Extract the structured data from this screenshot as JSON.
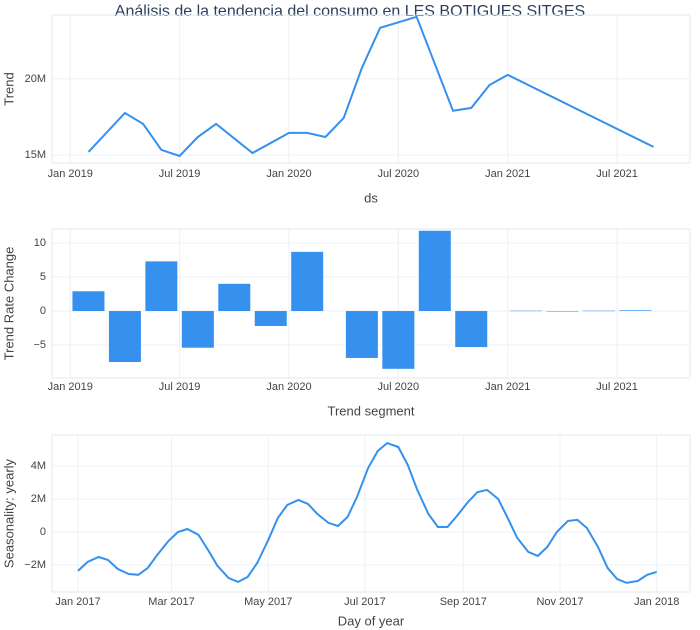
{
  "chart_data": [
    {
      "type": "line",
      "title": "Análisis de la tendencia del consumo en LES BOTIGUES SITGES",
      "x_label": "ds",
      "y_label": "Trend",
      "color": "#3590ee",
      "x": [
        "2019-02",
        "2019-04",
        "2019-05",
        "2019-06",
        "2019-07",
        "2019-08",
        "2019-09",
        "2019-11",
        "2020-01",
        "2020-02",
        "2020-03",
        "2020-04",
        "2020-05",
        "2020-06",
        "2020-08",
        "2020-10",
        "2020-11",
        "2020-12",
        "2021-01",
        "2021-09"
      ],
      "values": [
        15200000,
        17760000,
        17040000,
        15330000,
        14930000,
        16180000,
        17040000,
        15130000,
        16450000,
        16450000,
        16180000,
        17430000,
        20720000,
        23360000,
        24080000,
        17900000,
        18090000,
        19600000,
        20260000,
        15530000
      ],
      "xlim": [
        "2018-12",
        "2021-11"
      ],
      "xticks": [
        {
          "value": "2019-01",
          "label": "Jan 2019"
        },
        {
          "value": "2019-07",
          "label": "Jul 2019"
        },
        {
          "value": "2020-01",
          "label": "Jan 2020"
        },
        {
          "value": "2020-07",
          "label": "Jul 2020"
        },
        {
          "value": "2021-01",
          "label": "Jan 2021"
        },
        {
          "value": "2021-07",
          "label": "Jul 2021"
        }
      ],
      "ylim": [
        14470000,
        24200000
      ],
      "yticks": [
        {
          "value": 15000000,
          "label": "15M"
        },
        {
          "value": 20000000,
          "label": "20M"
        }
      ],
      "grid": true
    },
    {
      "type": "bar",
      "x_label": "Trend segment",
      "y_label": "Trend Rate Change",
      "color": "#3590ee",
      "x": [
        "2019-02",
        "2019-04",
        "2019-06",
        "2019-08",
        "2019-10",
        "2019-12",
        "2020-02",
        "2020-05",
        "2020-07",
        "2020-09",
        "2020-11",
        "2021-02",
        "2021-04",
        "2021-06",
        "2021-08"
      ],
      "values": [
        2.9,
        -7.5,
        7.3,
        -5.4,
        4.0,
        -2.2,
        8.7,
        -6.9,
        -8.5,
        11.8,
        -5.3,
        0.05,
        -0.05,
        0.05,
        0.1
      ],
      "xlim": [
        "2018-12",
        "2021-11"
      ],
      "xticks": [
        {
          "value": "2019-01",
          "label": "Jan 2019"
        },
        {
          "value": "2019-07",
          "label": "Jul 2019"
        },
        {
          "value": "2020-01",
          "label": "Jan 2020"
        },
        {
          "value": "2020-07",
          "label": "Jul 2020"
        },
        {
          "value": "2021-01",
          "label": "Jan 2021"
        },
        {
          "value": "2021-07",
          "label": "Jul 2021"
        }
      ],
      "ylim": [
        -9.85,
        12.06
      ],
      "yticks": [
        {
          "value": -5,
          "label": "−5"
        },
        0,
        5,
        10
      ],
      "grid": true
    },
    {
      "type": "line",
      "x_label": "Day of year",
      "y_label": "Seasonality: yearly",
      "color": "#3590ee",
      "x": [
        0,
        6,
        13,
        19,
        25,
        32,
        38,
        44,
        50,
        57,
        63,
        69,
        76,
        82,
        88,
        95,
        101,
        107,
        113,
        120,
        126,
        132,
        139,
        145,
        151,
        158,
        164,
        170,
        176,
        183,
        189,
        195,
        202,
        208,
        214,
        221,
        227,
        233,
        239,
        246,
        252,
        258,
        265,
        271,
        277,
        284,
        290,
        296,
        302,
        309,
        315,
        321,
        328,
        334,
        340,
        346,
        353,
        359,
        365
      ],
      "values": [
        -2360000,
        -1820000,
        -1520000,
        -1700000,
        -2240000,
        -2550000,
        -2600000,
        -2180000,
        -1390000,
        -550000,
        0,
        180000,
        -180000,
        -1090000,
        -2060000,
        -2790000,
        -3030000,
        -2730000,
        -1880000,
        -480000,
        850000,
        1640000,
        1940000,
        1700000,
        1090000,
        550000,
        360000,
        910000,
        2120000,
        3880000,
        4910000,
        5390000,
        5150000,
        4060000,
        2550000,
        1090000,
        300000,
        300000,
        970000,
        1820000,
        2420000,
        2550000,
        2000000,
        850000,
        -360000,
        -1210000,
        -1450000,
        -910000,
        0,
        670000,
        730000,
        240000,
        -910000,
        -2180000,
        -2850000,
        -3090000,
        -2970000,
        -2600000,
        -2420000
      ],
      "xlim": [
        -16.4,
        386
      ],
      "xticks": [
        {
          "value": 0,
          "label": "Jan 2017"
        },
        {
          "value": 59,
          "label": "Mar 2017"
        },
        {
          "value": 120,
          "label": "May 2017"
        },
        {
          "value": 181,
          "label": "Jul 2017"
        },
        {
          "value": 243,
          "label": "Sep 2017"
        },
        {
          "value": 304,
          "label": "Nov 2017"
        },
        {
          "value": 365,
          "label": "Jan 2018"
        }
      ],
      "ylim": [
        -3640000,
        5880000
      ],
      "yticks": [
        {
          "value": -2000000,
          "label": "−2M"
        },
        0,
        {
          "value": 2000000,
          "label": "2M"
        },
        {
          "value": 4000000,
          "label": "4M"
        }
      ],
      "grid": true
    }
  ]
}
